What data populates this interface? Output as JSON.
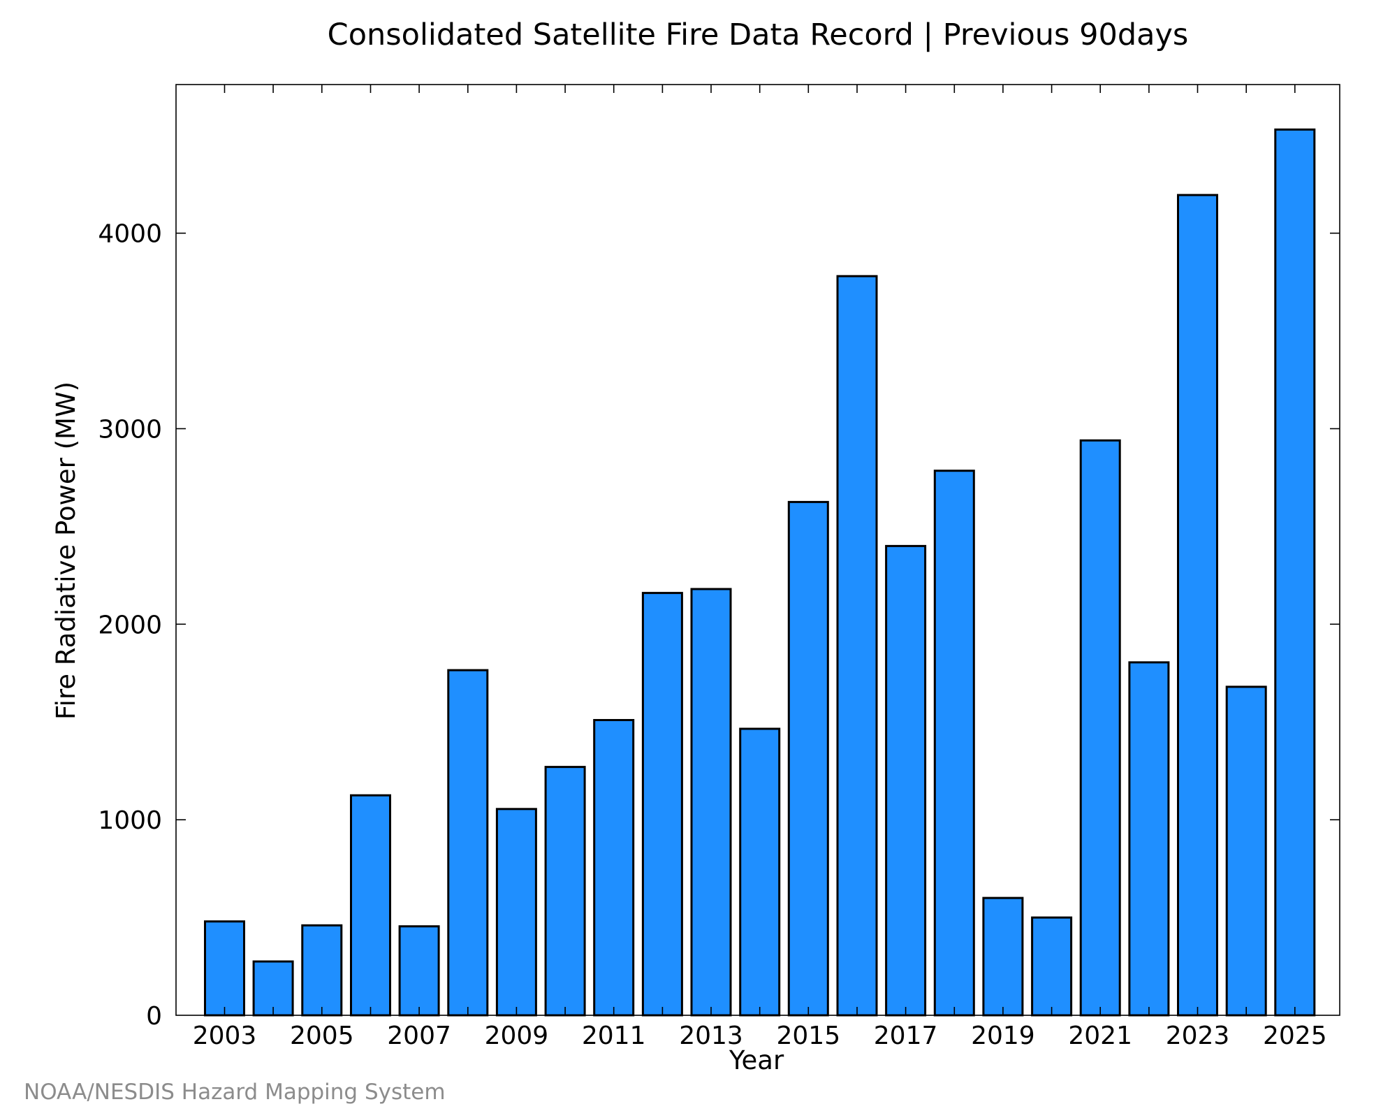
{
  "chart_data": {
    "type": "bar",
    "title": "Consolidated Satellite Fire Data Record | Previous 90days",
    "xlabel": "Year",
    "ylabel": "Fire Radiative Power (MW)",
    "credit": "NOAA/NESDIS Hazard Mapping System",
    "categories": [
      "2003",
      "2004",
      "2005",
      "2006",
      "2007",
      "2008",
      "2009",
      "2010",
      "2011",
      "2012",
      "2013",
      "2014",
      "2015",
      "2016",
      "2017",
      "2018",
      "2019",
      "2020",
      "2021",
      "2022",
      "2023",
      "2024",
      "2025"
    ],
    "values": [
      480,
      275,
      460,
      1125,
      455,
      1765,
      1055,
      1270,
      1510,
      2160,
      2180,
      1465,
      2625,
      3780,
      2400,
      2785,
      600,
      500,
      2940,
      1805,
      4195,
      1680,
      4530
    ],
    "xtick_labels": [
      "2003",
      "2005",
      "2007",
      "2009",
      "2011",
      "2013",
      "2015",
      "2017",
      "2019",
      "2021",
      "2023",
      "2025"
    ],
    "yticks": [
      0,
      1000,
      2000,
      3000,
      4000
    ],
    "ylim": [
      0,
      4760
    ],
    "bar_color": "#1f8fff",
    "bar_edge_color": "#000000",
    "grid": false,
    "legend": "none"
  }
}
